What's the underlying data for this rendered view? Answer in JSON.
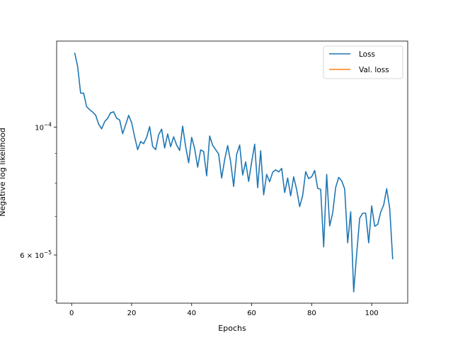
{
  "chart_data": {
    "type": "line",
    "xlabel": "Epochs",
    "ylabel": "Negative log likelihood",
    "yscale": "log",
    "xlim": [
      -5,
      112
    ],
    "ylim": [
      4.95e-05,
      0.000141
    ],
    "x_ticks": [
      {
        "value": 0,
        "label": "0"
      },
      {
        "value": 20,
        "label": "20"
      },
      {
        "value": 40,
        "label": "40"
      },
      {
        "value": 60,
        "label": "60"
      },
      {
        "value": 80,
        "label": "80"
      },
      {
        "value": 100,
        "label": "100"
      }
    ],
    "y_ticks": [
      {
        "value": 0.0001,
        "base": "10",
        "exp": "−4"
      },
      {
        "value": 6e-05,
        "base": "6 × 10",
        "exp": "−5"
      }
    ],
    "y_minor_ticks": [
      5e-05,
      7e-05,
      8e-05,
      9e-05
    ],
    "legend": {
      "placement": "top-right"
    },
    "grid": false,
    "series": [
      {
        "name": "Loss",
        "color": "#1f77b4",
        "x": [
          1,
          2,
          3,
          4,
          5,
          6,
          7,
          8,
          9,
          10,
          11,
          12,
          13,
          14,
          15,
          16,
          17,
          18,
          19,
          20,
          21,
          22,
          23,
          24,
          25,
          26,
          27,
          28,
          29,
          30,
          31,
          32,
          33,
          34,
          35,
          36,
          37,
          38,
          39,
          40,
          41,
          42,
          43,
          44,
          45,
          46,
          47,
          48,
          49,
          50,
          51,
          52,
          53,
          54,
          55,
          56,
          57,
          58,
          59,
          60,
          61,
          62,
          63,
          64,
          65,
          66,
          67,
          68,
          69,
          70,
          71,
          72,
          73,
          74,
          75,
          76,
          77,
          78,
          79,
          80,
          81,
          82,
          83,
          84,
          85,
          86,
          87,
          88,
          89,
          90,
          91,
          92,
          93,
          94,
          95,
          96,
          97,
          98,
          99,
          100,
          101,
          102,
          103,
          104,
          105,
          106,
          107
        ],
        "values": [
          0.0001346,
          0.0001275,
          0.0001145,
          0.0001145,
          0.0001085,
          0.0001072,
          0.0001062,
          0.0001049,
          0.0001012,
          9.93e-05,
          0.0001022,
          0.0001036,
          0.0001059,
          0.0001063,
          0.0001036,
          0.0001029,
          9.74e-05,
          0.0001009,
          0.0001048,
          0.0001018,
          9.62e-05,
          9.14e-05,
          9.44e-05,
          9.36e-05,
          9.6e-05,
          0.0001002,
          9.26e-05,
          9.14e-05,
          9.7e-05,
          9.92e-05,
          9.2e-05,
          9.73e-05,
          9.25e-05,
          9.62e-05,
          9.31e-05,
          9.11e-05,
          0.0001004,
          9.25e-05,
          8.67e-05,
          9.6e-05,
          9.18e-05,
          8.52e-05,
          9.13e-05,
          9.07e-05,
          8.23e-05,
          9.65e-05,
          9.3e-05,
          9.14e-05,
          8.98e-05,
          8.16e-05,
          8.78e-05,
          9.29e-05,
          8.7e-05,
          7.89e-05,
          8.97e-05,
          9.31e-05,
          8.26e-05,
          8.7e-05,
          8.05e-05,
          8.7e-05,
          9.34e-05,
          7.85e-05,
          9.1e-05,
          7.63e-05,
          8.28e-05,
          8.04e-05,
          8.35e-05,
          8.43e-05,
          8.36e-05,
          8.48e-05,
          7.7e-05,
          8.16e-05,
          7.6e-05,
          8.2e-05,
          7.79e-05,
          7.28e-05,
          7.61e-05,
          8.37e-05,
          8.14e-05,
          8.2e-05,
          8.41e-05,
          7.83e-05,
          7.8e-05,
          6.2e-05,
          8.28e-05,
          6.74e-05,
          7.1e-05,
          7.86e-05,
          8.18e-05,
          8.07e-05,
          7.81e-05,
          6.3e-05,
          7.13e-05,
          5.18e-05,
          6.03e-05,
          6.95e-05,
          7.09e-05,
          7.09e-05,
          6.3e-05,
          7.3e-05,
          6.73e-05,
          6.78e-05,
          7.12e-05,
          7.33e-05,
          7.82e-05,
          7.23e-05,
          5.9e-05
        ]
      },
      {
        "name": "Val. loss",
        "color": "#ff7f0e",
        "x": [],
        "values": []
      }
    ]
  }
}
